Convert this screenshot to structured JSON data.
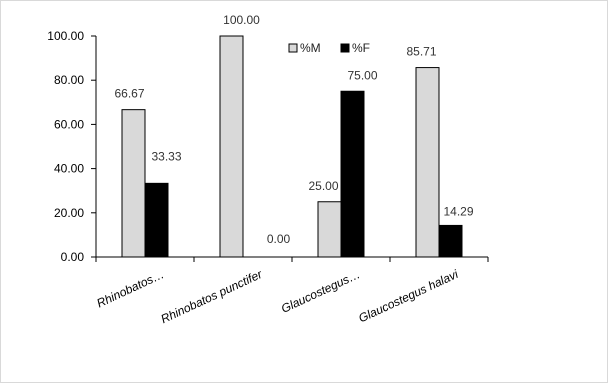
{
  "chart_data": {
    "type": "bar",
    "categories": [
      "Rhinobatos…",
      "Rhinobatos punctifer",
      "Glaucostegus…",
      "Glaucostegus  halavi"
    ],
    "series": [
      {
        "name": "%M",
        "values": [
          66.67,
          100.0,
          25.0,
          85.71
        ],
        "color": "#d9d9d9"
      },
      {
        "name": "%F",
        "values": [
          33.33,
          0.0,
          75.0,
          14.29
        ],
        "color": "#000000"
      }
    ],
    "data_labels": [
      [
        "66.67",
        "100.00",
        "25.00",
        "85.71"
      ],
      [
        "33.33",
        "0.00",
        "75.00",
        "14.29"
      ]
    ],
    "yticks": [
      "0.00",
      "20.00",
      "40.00",
      "60.00",
      "80.00",
      "100.00"
    ],
    "ylim": [
      0,
      100
    ],
    "title": "",
    "xlabel": "",
    "ylabel": "",
    "grid": false,
    "legend_position": "top-center"
  }
}
